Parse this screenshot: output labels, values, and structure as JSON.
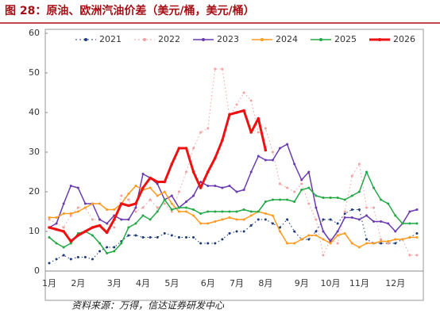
{
  "chart_data": {
    "type": "line",
    "title": "图 28：原油、欧洲汽油价差（美元/桶，美元/桶）",
    "source": "资料来源：万得，信达证券研发中心",
    "categories": [
      "1月",
      null,
      null,
      null,
      "2月",
      null,
      null,
      null,
      null,
      "3月",
      null,
      null,
      null,
      "4月",
      null,
      null,
      null,
      "5月",
      null,
      null,
      null,
      null,
      "6月",
      null,
      null,
      null,
      "7月",
      null,
      null,
      null,
      "8月",
      null,
      null,
      null,
      null,
      "9月",
      null,
      null,
      null,
      "10月",
      null,
      null,
      null,
      "11月",
      null,
      null,
      null,
      null,
      "12月",
      null,
      null,
      null
    ],
    "ylim": [
      0,
      60
    ],
    "yticks": [
      0,
      10,
      20,
      30,
      40,
      50,
      60
    ],
    "grid": false,
    "legend": "top",
    "series": [
      {
        "name": "2021",
        "color": "#1f3a7a",
        "style": "dotted",
        "width": 1,
        "values": [
          2,
          3,
          4,
          3,
          3.5,
          3.5,
          3,
          5,
          6,
          6,
          7.5,
          9,
          9,
          8.5,
          8.5,
          8.5,
          9.5,
          9,
          8.5,
          8.5,
          8.5,
          7,
          7,
          7,
          8,
          9.5,
          10,
          10,
          11.5,
          13,
          13,
          12,
          11,
          13,
          10,
          8,
          8,
          10,
          13,
          13,
          12,
          14.5,
          15.5,
          15.5,
          8,
          7,
          7,
          7,
          7,
          8,
          8.5,
          9.5
        ]
      },
      {
        "name": "2022",
        "color": "#f4a0a0",
        "style": "dotted",
        "width": 1,
        "values": [
          13,
          12,
          11,
          14,
          16,
          16,
          13,
          13,
          12,
          11,
          19,
          18,
          15,
          16,
          18,
          16,
          17,
          15,
          20,
          25,
          31,
          35,
          36,
          51,
          51,
          39,
          42,
          45,
          43,
          35,
          36,
          30,
          22,
          21,
          20,
          22,
          17,
          13,
          4,
          8,
          7,
          15,
          24,
          27,
          16,
          16,
          8,
          7,
          8,
          8,
          4,
          4
        ]
      },
      {
        "name": "2023",
        "color": "#6a3ab0",
        "style": "solid",
        "width": 1.5,
        "values": [
          11,
          12,
          17,
          21.5,
          21,
          17,
          17,
          13,
          12,
          14,
          13,
          13,
          16,
          24.5,
          23.5,
          22,
          18,
          19,
          16,
          17.5,
          19,
          22.5,
          21.5,
          21.5,
          21,
          21.5,
          20,
          20.5,
          25,
          29,
          28,
          28,
          31,
          32,
          27,
          23,
          25,
          16,
          10,
          7.5,
          10,
          13.5,
          13.5,
          13,
          14,
          12.5,
          12.5,
          12,
          10,
          12,
          15,
          15.5
        ]
      },
      {
        "name": "2024",
        "color": "#ff9a1f",
        "style": "solid",
        "width": 1.5,
        "values": [
          13.5,
          13.5,
          14.5,
          14.5,
          15,
          16,
          17,
          17,
          15.5,
          15.5,
          17,
          19.5,
          21.5,
          20.5,
          21,
          19,
          20,
          17,
          15,
          15,
          14,
          12,
          12,
          12.5,
          13,
          13.5,
          13,
          13,
          14,
          15,
          14.5,
          14,
          10,
          7,
          7,
          8,
          9,
          9,
          8,
          7,
          9,
          9.5,
          7,
          6,
          7,
          7,
          7.5,
          7.5,
          8,
          8,
          8.5,
          8.5
        ]
      },
      {
        "name": "2025",
        "color": "#22a845",
        "style": "solid",
        "width": 1.5,
        "values": [
          8.5,
          7,
          6,
          7,
          9.5,
          10,
          9,
          7,
          4.5,
          5,
          7,
          11,
          12,
          14,
          13,
          15,
          18,
          15.5,
          16,
          16,
          15.5,
          14.5,
          15,
          15,
          15,
          15,
          15,
          15.5,
          15,
          15,
          17.5,
          18,
          18,
          18,
          17.5,
          20.5,
          21,
          19,
          18.5,
          18.5,
          18.5,
          18,
          19,
          20,
          25,
          21,
          18,
          17,
          14,
          12,
          12,
          12
        ]
      },
      {
        "name": "2026",
        "color": "#ee1111",
        "style": "solid",
        "width": 3,
        "values": [
          11,
          10.5,
          10,
          7.5,
          9,
          10,
          11,
          11.5,
          9.7,
          13,
          17,
          16.5,
          17,
          21,
          23.5,
          22.5,
          22.5,
          27,
          31,
          31,
          25,
          21,
          25,
          28.5,
          33,
          39.5,
          40,
          40.5,
          35,
          38.5,
          30.5,
          null,
          null,
          null,
          null,
          null,
          null,
          null,
          null,
          null,
          null,
          null,
          null,
          null,
          null,
          null,
          null,
          null,
          null,
          null,
          null,
          null
        ]
      }
    ]
  }
}
